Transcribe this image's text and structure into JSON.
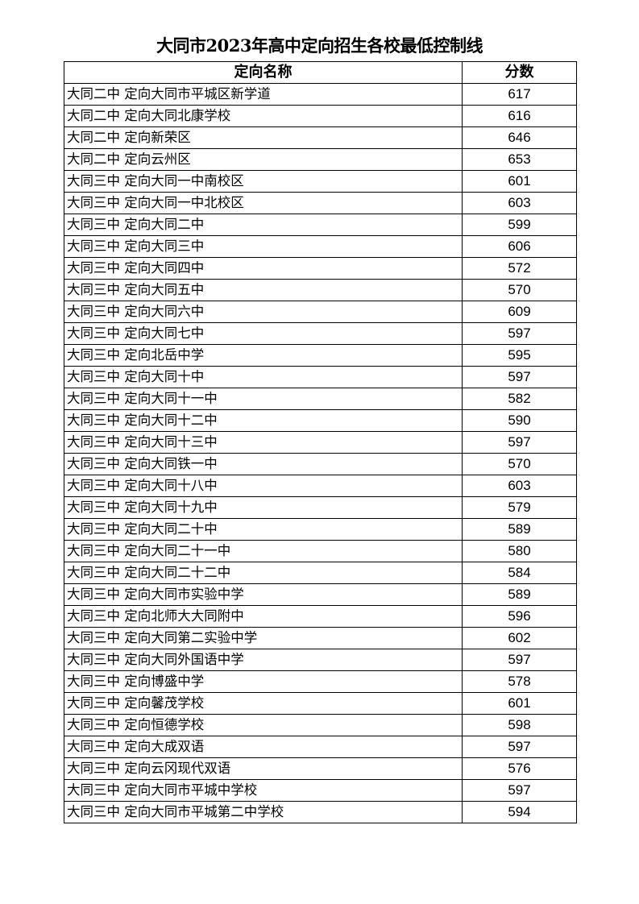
{
  "title": "大同市2023年高中定向招生各校最低控制线",
  "table": {
    "headers": [
      "定向名称",
      "分数"
    ],
    "rows": [
      {
        "name": "大同二中 定向大同市平城区新学道",
        "score": "617"
      },
      {
        "name": "大同二中 定向大同北康学校",
        "score": "616"
      },
      {
        "name": "大同二中 定向新荣区",
        "score": "646"
      },
      {
        "name": "大同二中 定向云州区",
        "score": "653"
      },
      {
        "name": "大同三中 定向大同一中南校区",
        "score": "601"
      },
      {
        "name": "大同三中 定向大同一中北校区",
        "score": "603"
      },
      {
        "name": "大同三中 定向大同二中",
        "score": "599"
      },
      {
        "name": "大同三中 定向大同三中",
        "score": "606"
      },
      {
        "name": "大同三中 定向大同四中",
        "score": "572"
      },
      {
        "name": "大同三中 定向大同五中",
        "score": "570"
      },
      {
        "name": "大同三中 定向大同六中",
        "score": "609"
      },
      {
        "name": "大同三中 定向大同七中",
        "score": "597"
      },
      {
        "name": "大同三中 定向北岳中学",
        "score": "595"
      },
      {
        "name": "大同三中 定向大同十中",
        "score": "597"
      },
      {
        "name": "大同三中 定向大同十一中",
        "score": "582"
      },
      {
        "name": "大同三中 定向大同十二中",
        "score": "590"
      },
      {
        "name": "大同三中 定向大同十三中",
        "score": "597"
      },
      {
        "name": "大同三中 定向大同铁一中",
        "score": "570"
      },
      {
        "name": "大同三中 定向大同十八中",
        "score": "603"
      },
      {
        "name": "大同三中 定向大同十九中",
        "score": "579"
      },
      {
        "name": "大同三中 定向大同二十中",
        "score": "589"
      },
      {
        "name": "大同三中 定向大同二十一中",
        "score": "580"
      },
      {
        "name": "大同三中 定向大同二十二中",
        "score": "584"
      },
      {
        "name": "大同三中 定向大同市实验中学",
        "score": "589"
      },
      {
        "name": "大同三中 定向北师大大同附中",
        "score": "596"
      },
      {
        "name": "大同三中 定向大同第二实验中学",
        "score": "602"
      },
      {
        "name": "大同三中 定向大同外国语中学",
        "score": "597"
      },
      {
        "name": "大同三中 定向博盛中学",
        "score": "578"
      },
      {
        "name": "大同三中 定向馨茂学校",
        "score": "601"
      },
      {
        "name": "大同三中 定向恒德学校",
        "score": "598"
      },
      {
        "name": "大同三中 定向大成双语",
        "score": "597"
      },
      {
        "name": "大同三中 定向云冈现代双语",
        "score": "576"
      },
      {
        "name": "大同三中 定向大同市平城中学校",
        "score": "597"
      },
      {
        "name": "大同三中 定向大同市平城第二中学校",
        "score": "594"
      }
    ]
  }
}
